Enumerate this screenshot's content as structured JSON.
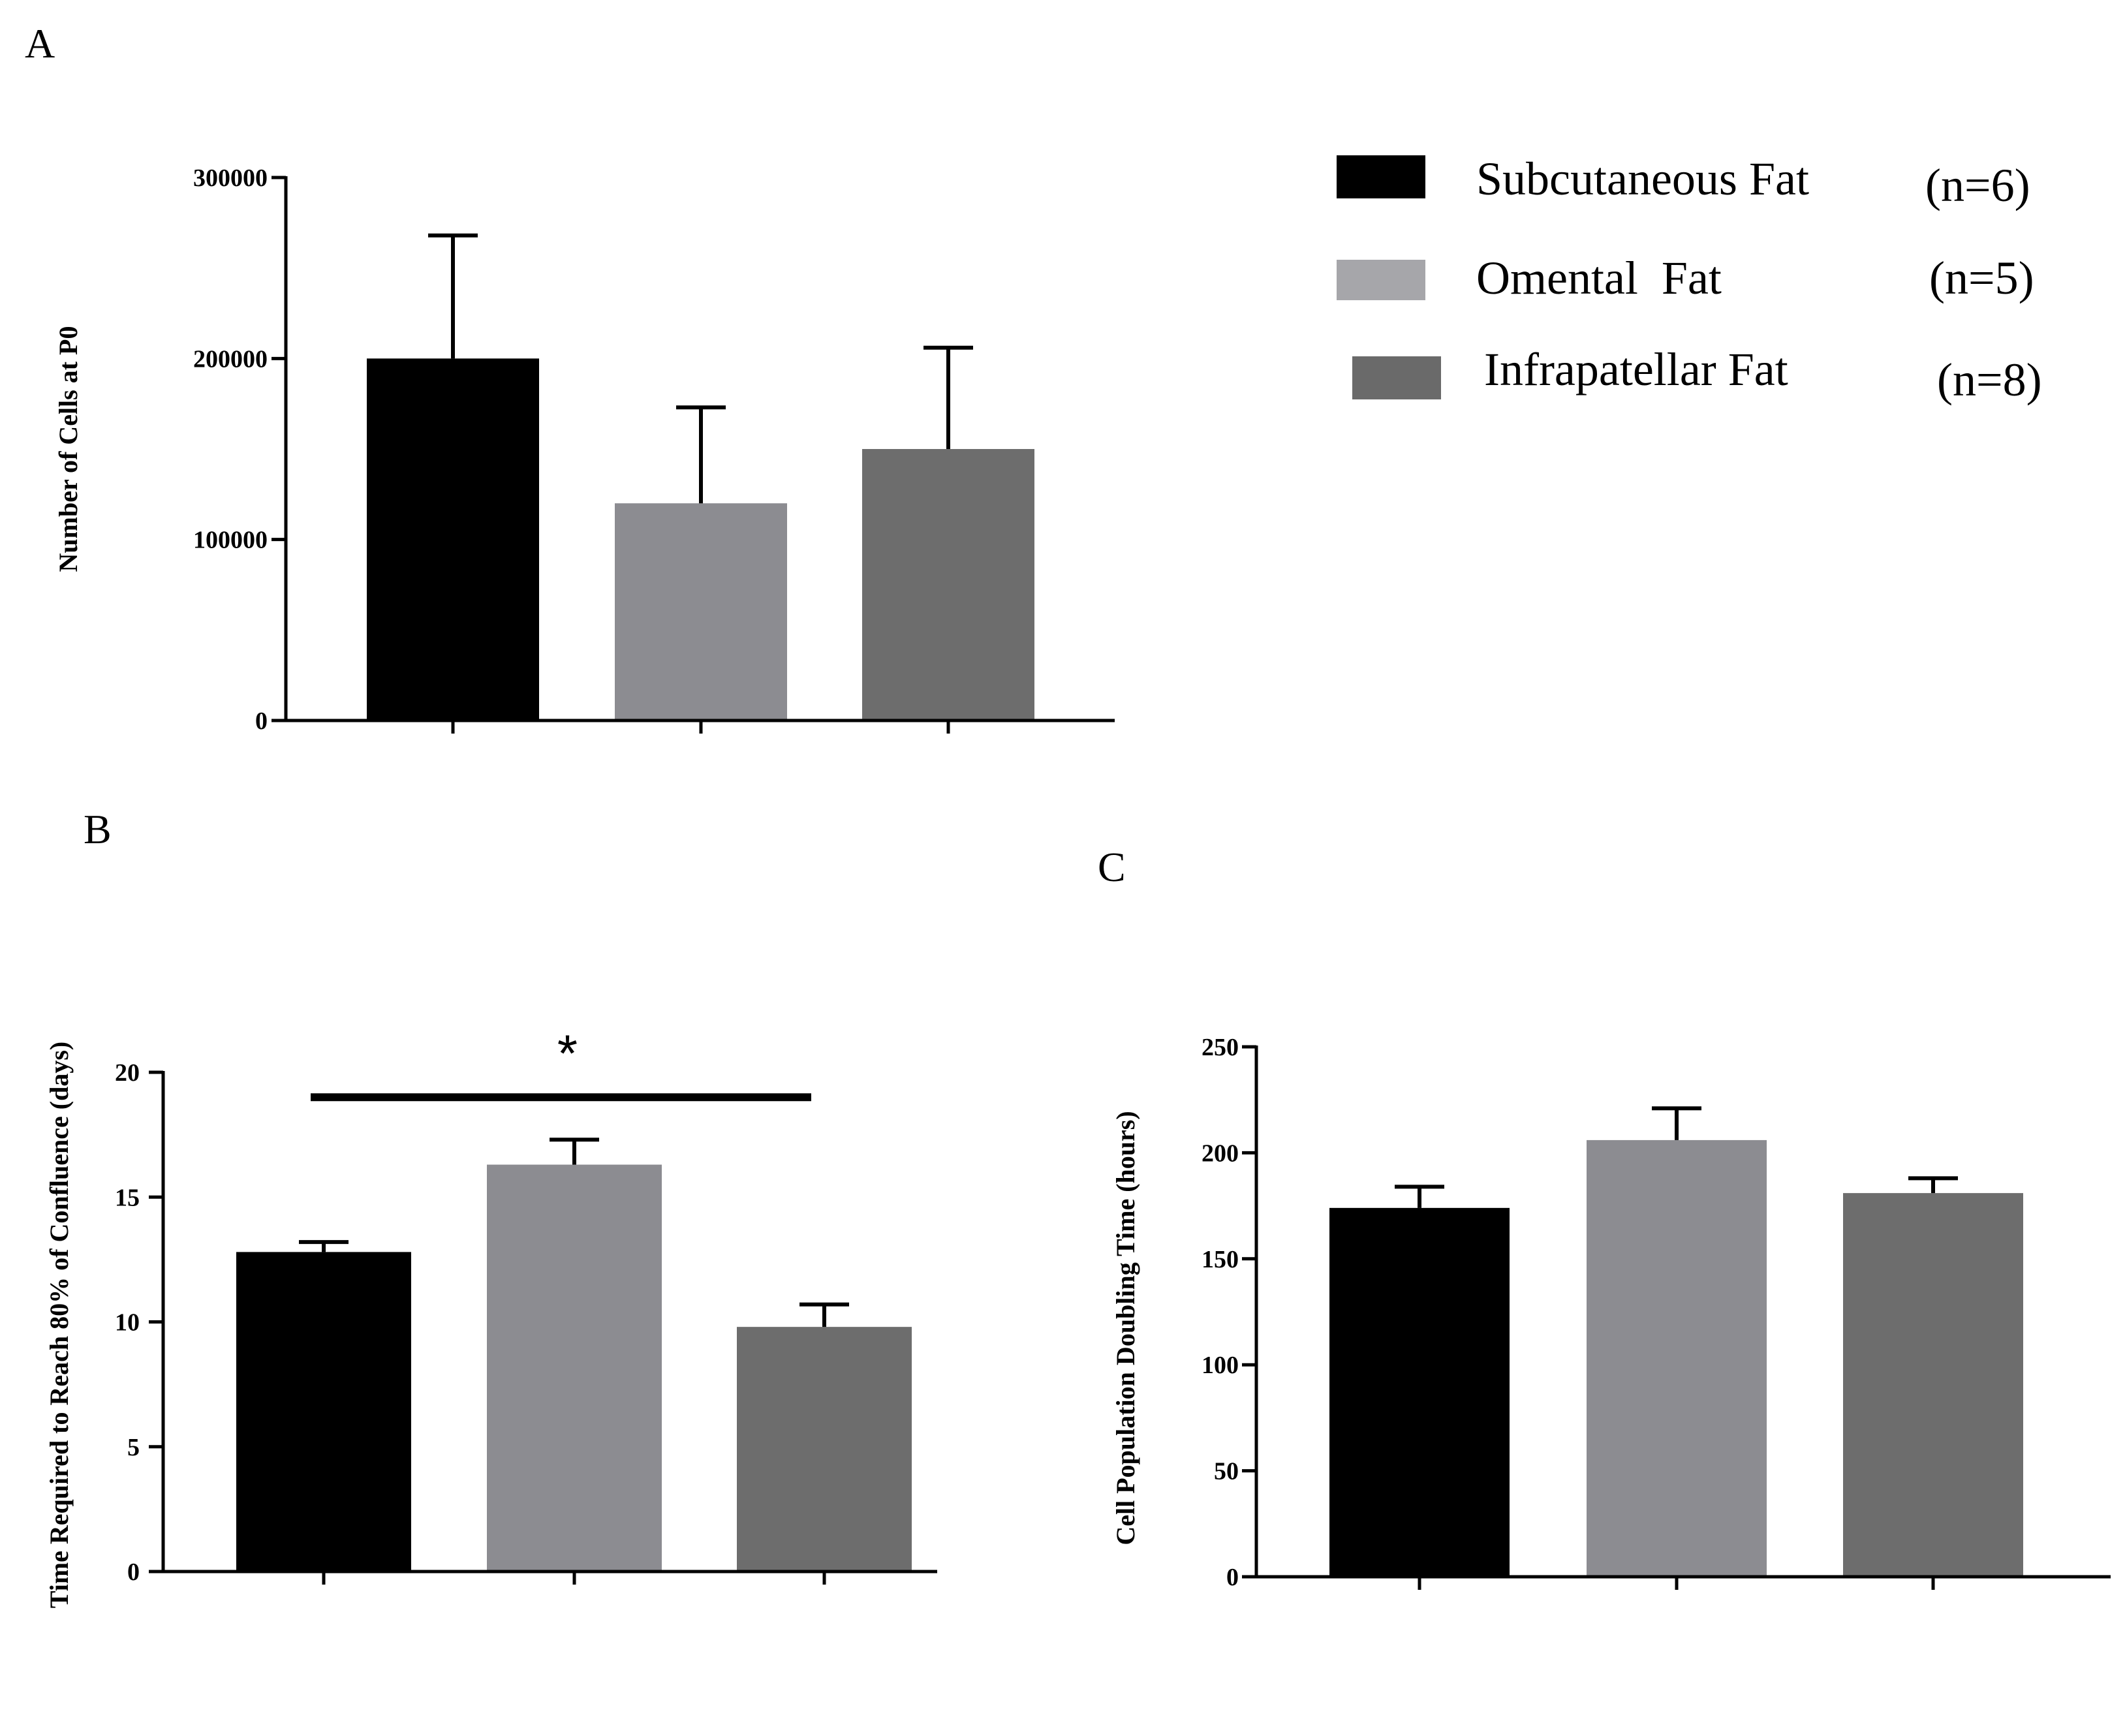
{
  "legend": {
    "items": [
      {
        "label": "Subcutaneous Fat",
        "n": "(n=6)",
        "color": "#000000"
      },
      {
        "label": "Omental  Fat",
        "n": "(n=5)",
        "color": "#a6a6aa"
      },
      {
        "label": "Infrapatellar Fat",
        "n": "(n=8)",
        "color": "#6a6a6a"
      }
    ]
  },
  "chart_data": [
    {
      "panel": "A",
      "type": "bar",
      "categories": [
        "Subcutaneous Fat",
        "Omental  Fat",
        "Infrapatellar Fat"
      ],
      "values": [
        200000,
        120000,
        150000
      ],
      "errors": [
        68000,
        53000,
        56000
      ],
      "colors": [
        "#000000",
        "#8c8c91",
        "#6d6d6d"
      ],
      "ylabel": "Number of Cells at P0",
      "ylim": [
        0,
        300000
      ],
      "yticks": [
        0,
        100000,
        200000,
        300000
      ],
      "ytick_labels": [
        "0",
        "100000",
        "200000",
        "300000"
      ]
    },
    {
      "panel": "B",
      "type": "bar",
      "categories": [
        "Subcutaneous Fat",
        "Omental  Fat",
        "Infrapatellar Fat"
      ],
      "values": [
        12.8,
        16.3,
        9.8
      ],
      "errors": [
        0.4,
        1.0,
        0.9
      ],
      "colors": [
        "#000000",
        "#8c8c91",
        "#6d6d6d"
      ],
      "ylabel": "Time Required to Reach 80% of Confluence  (days)",
      "ylim": [
        0,
        20
      ],
      "yticks": [
        0,
        5,
        10,
        15,
        20
      ],
      "ytick_labels": [
        "0",
        "5",
        "10",
        "15",
        "20"
      ],
      "significance": {
        "from": 0,
        "to": 2,
        "y": 19.0,
        "label": "*"
      }
    },
    {
      "panel": "C",
      "type": "bar",
      "categories": [
        "Subcutaneous Fat",
        "Omental  Fat",
        "Infrapatellar Fat"
      ],
      "values": [
        174,
        206,
        181
      ],
      "errors": [
        10,
        15,
        7
      ],
      "colors": [
        "#000000",
        "#8c8c91",
        "#6d6d6d"
      ],
      "ylabel": "Cell Population Doubling Time  (hours)",
      "ylim": [
        0,
        250
      ],
      "yticks": [
        0,
        50,
        100,
        150,
        200,
        250
      ],
      "ytick_labels": [
        "0",
        "50",
        "100",
        "150",
        "200",
        "250"
      ]
    }
  ]
}
